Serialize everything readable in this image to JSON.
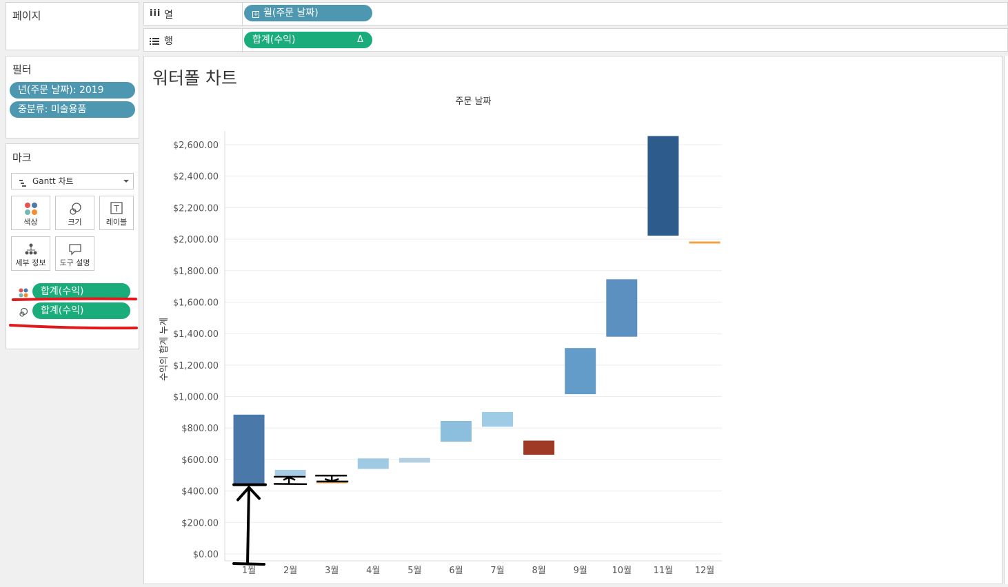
{
  "pages": {
    "title": "페이지"
  },
  "columns_shelf": {
    "label": "열",
    "icon": "columns-icon",
    "pill": "월(주문 날짜)"
  },
  "rows_shelf": {
    "label": "행",
    "icon": "rows-icon",
    "pill": "합계(수익)",
    "pill_delta": "Δ"
  },
  "filters": {
    "title": "필터",
    "items": [
      "년(주문 날짜): 2019",
      "중분류: 미술용품"
    ]
  },
  "marks": {
    "title": "마크",
    "type_select": "Gantt 차트",
    "buttons": {
      "color": "색상",
      "size": "크기",
      "label": "레이블",
      "detail": "세부 정보",
      "tooltip": "도구 설명"
    },
    "fields": [
      {
        "encoding": "color-icon",
        "text": "합계(수익)"
      },
      {
        "encoding": "size-icon",
        "text": "합계(수익)"
      }
    ]
  },
  "view": {
    "title": "워터폴 차트"
  },
  "chart_data": {
    "type": "bar",
    "subtype": "waterfall-gantt",
    "title": "주문 날짜",
    "xlabel": "주문 날짜",
    "ylabel": "수익의 합계 누계",
    "categories": [
      "1월",
      "2월",
      "3월",
      "4월",
      "5월",
      "6월",
      "7월",
      "8월",
      "9월",
      "10월",
      "11월",
      "12월"
    ],
    "bars": [
      {
        "low": 445,
        "high": 885,
        "color": "#4a78a8"
      },
      {
        "low": 493,
        "high": 534,
        "color": "#a8cce4"
      },
      {
        "low": 450,
        "high": 462,
        "color": "#f0a148"
      },
      {
        "low": 540,
        "high": 607,
        "color": "#9fcae3"
      },
      {
        "low": 580,
        "high": 610,
        "color": "#b4cfdf"
      },
      {
        "low": 713,
        "high": 845,
        "color": "#8bbfdd"
      },
      {
        "low": 808,
        "high": 902,
        "color": "#9ecbe6"
      },
      {
        "low": 630,
        "high": 720,
        "color": "#9e3a25"
      },
      {
        "low": 1015,
        "high": 1308,
        "color": "#649cc9"
      },
      {
        "low": 1380,
        "high": 1745,
        "color": "#5b90c0"
      },
      {
        "low": 2022,
        "high": 2655,
        "color": "#2c5b8c"
      },
      {
        "low": 1972,
        "high": 1985,
        "color": "#f0a148"
      }
    ],
    "yticks": [
      0,
      200,
      400,
      600,
      800,
      1000,
      1200,
      1400,
      1600,
      1800,
      2000,
      2200,
      2400,
      2600
    ],
    "ytick_labels": [
      "$0.00",
      "$200.00",
      "$400.00",
      "$600.00",
      "$800.00",
      "$1,000.00",
      "$1,200.00",
      "$1,400.00",
      "$1,600.00",
      "$1,800.00",
      "$2,000.00",
      "$2,200.00",
      "$2,400.00",
      "$2,600.00"
    ],
    "ylim": [
      0,
      2600
    ],
    "grid": true
  }
}
